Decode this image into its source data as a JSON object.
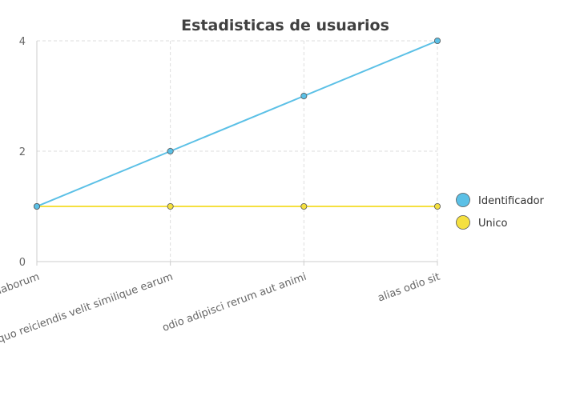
{
  "chart_data": {
    "type": "line",
    "title": "Estadisticas de usuarios",
    "xlabel": "",
    "ylabel": "",
    "categories": [
      "labore sed laborum",
      "quo reiciendis velit similique earum",
      "odio adipisci rerum aut animi",
      "alias odio sit"
    ],
    "series": [
      {
        "name": "Identificador",
        "values": [
          1,
          2,
          3,
          4
        ],
        "color": "#5bc0e6"
      },
      {
        "name": "Unico",
        "values": [
          1,
          1,
          1,
          1
        ],
        "color": "#f5e040"
      }
    ],
    "ylim": [
      0,
      4
    ],
    "yticks": [
      0,
      2,
      4
    ],
    "grid": true,
    "legend": "right"
  }
}
